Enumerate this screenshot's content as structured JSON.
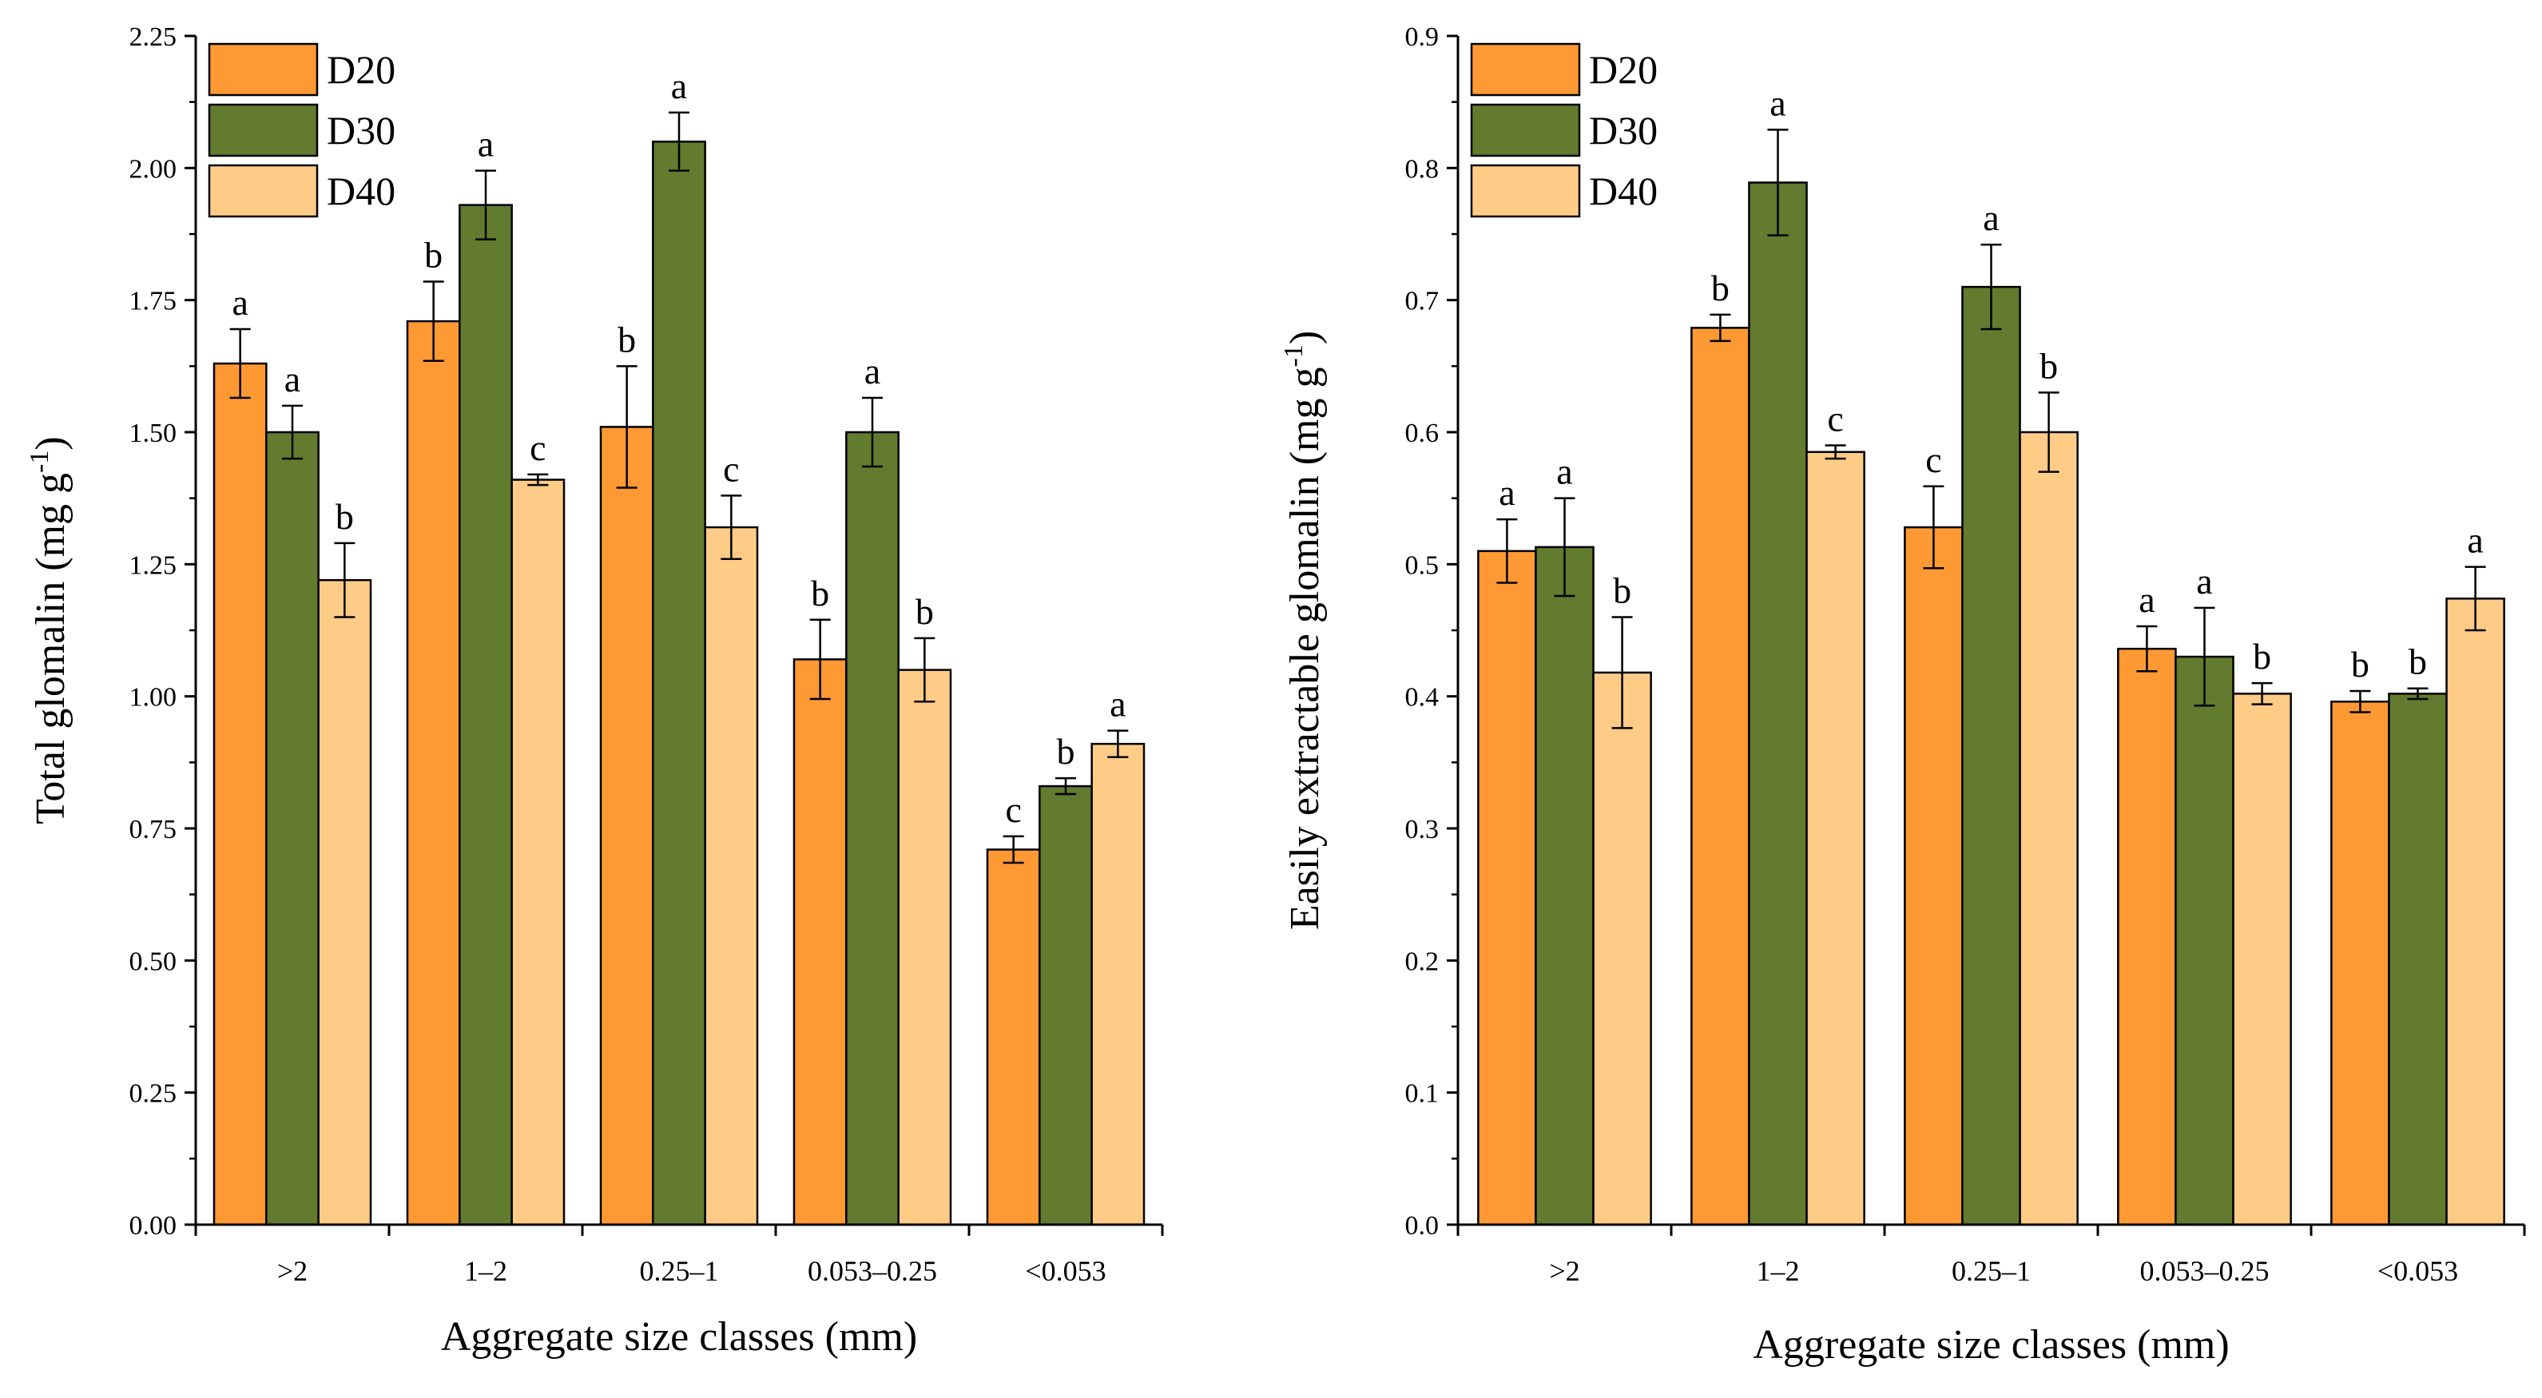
{
  "colors": {
    "D20": "#FF9933",
    "D30": "#627B2F",
    "D40": "#FFCC88"
  },
  "chart_data": [
    {
      "type": "bar",
      "title": "",
      "xlabel": "Aggregate size classes (mm)",
      "ylabel_main": "Total glomalin (mg g",
      "ylabel_sup": "-1",
      "ylabel_end": ")",
      "ylim": [
        0,
        2.25
      ],
      "yticks": [
        "0.00",
        "0.25",
        "0.50",
        "0.75",
        "1.00",
        "1.25",
        "1.50",
        "1.75",
        "2.00",
        "2.25"
      ],
      "categories": [
        ">2",
        "1–2",
        "0.25–1",
        "0.053–0.25",
        "<0.053"
      ],
      "legend_position": "top-left",
      "series": [
        {
          "name": "D20",
          "values": [
            1.63,
            1.71,
            1.51,
            1.07,
            0.71
          ],
          "errors": [
            0.065,
            0.075,
            0.115,
            0.075,
            0.025
          ],
          "letters": [
            "a",
            "b",
            "b",
            "b",
            "c"
          ]
        },
        {
          "name": "D30",
          "values": [
            1.5,
            1.93,
            2.05,
            1.5,
            0.83
          ],
          "errors": [
            0.05,
            0.065,
            0.055,
            0.065,
            0.015
          ],
          "letters": [
            "a",
            "a",
            "a",
            "a",
            "b"
          ]
        },
        {
          "name": "D40",
          "values": [
            1.22,
            1.41,
            1.32,
            1.05,
            0.91
          ],
          "errors": [
            0.07,
            0.01,
            0.06,
            0.06,
            0.025
          ],
          "letters": [
            "b",
            "c",
            "c",
            "b",
            "a"
          ]
        }
      ]
    },
    {
      "type": "bar",
      "title": "",
      "xlabel": "Aggregate size classes (mm)",
      "ylabel_main": "Easily extractable glomalin (mg g",
      "ylabel_sup": "-1",
      "ylabel_end": ")",
      "ylim": [
        0,
        0.9
      ],
      "yticks": [
        "0.0",
        "0.1",
        "0.2",
        "0.3",
        "0.4",
        "0.5",
        "0.6",
        "0.7",
        "0.8",
        "0.9"
      ],
      "categories": [
        ">2",
        "1–2",
        "0.25–1",
        "0.053–0.25",
        "<0.053"
      ],
      "legend_position": "top-left",
      "series": [
        {
          "name": "D20",
          "values": [
            0.51,
            0.679,
            0.528,
            0.436,
            0.396
          ],
          "errors": [
            0.024,
            0.01,
            0.031,
            0.017,
            0.008
          ],
          "letters": [
            "a",
            "b",
            "c",
            "a",
            "b"
          ]
        },
        {
          "name": "D30",
          "values": [
            0.513,
            0.789,
            0.71,
            0.43,
            0.402
          ],
          "errors": [
            0.037,
            0.04,
            0.032,
            0.037,
            0.004
          ],
          "letters": [
            "a",
            "a",
            "a",
            "a",
            "b"
          ]
        },
        {
          "name": "D40",
          "values": [
            0.418,
            0.585,
            0.6,
            0.402,
            0.474
          ],
          "errors": [
            0.042,
            0.005,
            0.03,
            0.008,
            0.024
          ],
          "letters": [
            "b",
            "c",
            "b",
            "b",
            "a"
          ]
        }
      ]
    }
  ]
}
